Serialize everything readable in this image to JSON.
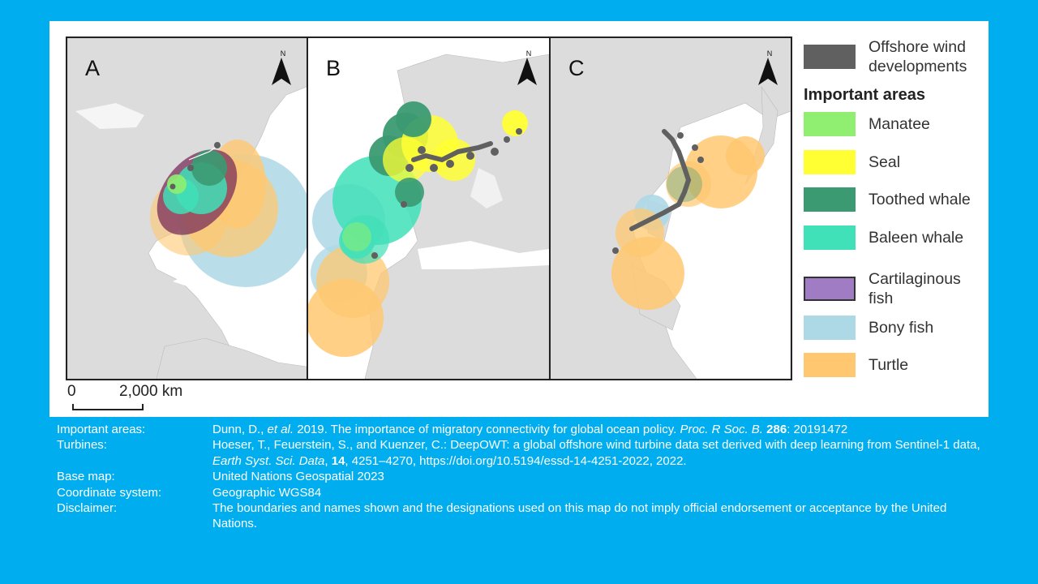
{
  "panels": [
    {
      "label": "A",
      "north": "N"
    },
    {
      "label": "B",
      "north": "N"
    },
    {
      "label": "C",
      "north": "N"
    }
  ],
  "scale_bar": {
    "start": "0",
    "end": "2,000 km"
  },
  "legend": {
    "wind_label": "Offshore wind developments",
    "heading": "Important areas",
    "items": [
      {
        "label": "Manatee",
        "color": "#90EE70"
      },
      {
        "label": "Seal",
        "color": "#FFFF33"
      },
      {
        "label": "Toothed whale",
        "color": "#3B9A72"
      },
      {
        "label": "Baleen whale",
        "color": "#40E0B8"
      },
      {
        "label": "Cartilaginous fish",
        "color": "#A07CC4"
      },
      {
        "label": "Bony fish",
        "color": "#ADD8E6"
      },
      {
        "label": "Turtle",
        "color": "#FFC870"
      }
    ],
    "wind_color": "#606060"
  },
  "credits": {
    "important_areas": {
      "key": "Important areas:",
      "author": "Dunn, D., ",
      "etal": "et al.",
      "text": " 2019. The importance of migratory connectivity for global ocean policy. ",
      "journal": "Proc. R Soc. B.",
      "volume": "286",
      "pages": ": 20191472"
    },
    "turbines": {
      "key": "Turbines:",
      "text": "Hoeser, T., Feuerstein, S., and Kuenzer, C.: DeepOWT: a global offshore wind turbine data set derived with deep learning from Sentinel-1 data, ",
      "journal": "Earth Syst. Sci. Data",
      "sep": ", ",
      "volume": "14",
      "rest": ", 4251–4270, https://doi.org/10.5194/essd-14-4251-2022, 2022."
    },
    "base_map": {
      "key": "Base map:",
      "text": "United Nations Geospatial 2023"
    },
    "coordinate_system": {
      "key": "Coordinate system:",
      "text": "Geographic WGS84"
    },
    "disclaimer": {
      "key": "Disclaimer:",
      "text": "The boundaries and names shown and the designations used on this map do not imply official endorsement or acceptance by the United Nations."
    }
  }
}
